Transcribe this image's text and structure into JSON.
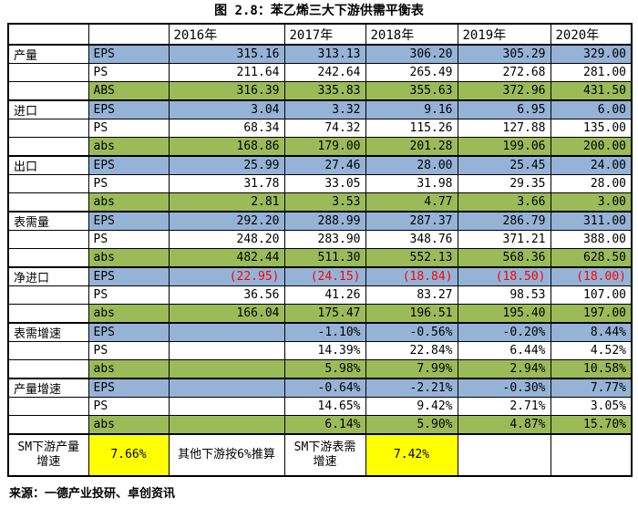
{
  "chart_data": {
    "type": "table",
    "title": "图 2.8：苯乙烯三大下游供需平衡表",
    "year_headers": [
      "2016年",
      "2017年",
      "2018年",
      "2019年",
      "2020年"
    ],
    "groups": [
      {
        "label": "产量",
        "rows": [
          {
            "sub": "EPS",
            "tone": "blue",
            "font": "black",
            "values": [
              "315.16",
              "313.13",
              "306.20",
              "305.29",
              "329.00"
            ]
          },
          {
            "sub": "PS",
            "tone": "white",
            "font": "black",
            "values": [
              "211.64",
              "242.64",
              "265.49",
              "272.68",
              "281.00"
            ]
          },
          {
            "sub": "ABS",
            "tone": "green",
            "font": "black",
            "values": [
              "316.39",
              "335.83",
              "355.63",
              "372.96",
              "431.50"
            ]
          }
        ]
      },
      {
        "label": "进口",
        "rows": [
          {
            "sub": "EPS",
            "tone": "blue",
            "font": "black",
            "values": [
              "3.04",
              "3.32",
              "9.16",
              "6.95",
              "6.00"
            ]
          },
          {
            "sub": "PS",
            "tone": "white",
            "font": "black",
            "values": [
              "68.34",
              "74.32",
              "115.26",
              "127.88",
              "135.00"
            ]
          },
          {
            "sub": "abs",
            "tone": "green",
            "font": "black",
            "values": [
              "168.86",
              "179.00",
              "201.28",
              "199.06",
              "200.00"
            ]
          }
        ]
      },
      {
        "label": "出口",
        "rows": [
          {
            "sub": "EPS",
            "tone": "blue",
            "font": "black",
            "values": [
              "25.99",
              "27.46",
              "28.00",
              "25.45",
              "24.00"
            ]
          },
          {
            "sub": "PS",
            "tone": "white",
            "font": "black",
            "values": [
              "31.78",
              "33.05",
              "31.98",
              "29.35",
              "28.00"
            ]
          },
          {
            "sub": "abs",
            "tone": "green",
            "font": "black",
            "values": [
              "2.81",
              "3.53",
              "4.77",
              "3.66",
              "3.00"
            ]
          }
        ]
      },
      {
        "label": "表需量",
        "rows": [
          {
            "sub": "EPS",
            "tone": "blue",
            "font": "black",
            "values": [
              "292.20",
              "288.99",
              "287.37",
              "286.79",
              "311.00"
            ]
          },
          {
            "sub": "PS",
            "tone": "white",
            "font": "black",
            "values": [
              "248.20",
              "283.90",
              "348.76",
              "371.21",
              "388.00"
            ]
          },
          {
            "sub": "abs",
            "tone": "green",
            "font": "black",
            "values": [
              "482.44",
              "511.30",
              "552.13",
              "568.36",
              "628.50"
            ]
          }
        ]
      },
      {
        "label": "净进口",
        "rows": [
          {
            "sub": "EPS",
            "tone": "blue",
            "font": "red",
            "values": [
              "(22.95)",
              "(24.15)",
              "(18.84)",
              "(18.50)",
              "(18.00)"
            ]
          },
          {
            "sub": "PS",
            "tone": "white",
            "font": "black",
            "values": [
              "36.56",
              "41.26",
              "83.27",
              "98.53",
              "107.00"
            ]
          },
          {
            "sub": "abs",
            "tone": "green",
            "font": "black",
            "values": [
              "166.04",
              "175.47",
              "196.51",
              "195.40",
              "197.00"
            ]
          }
        ]
      },
      {
        "label": "表需增速",
        "rows": [
          {
            "sub": "EPS",
            "tone": "blue",
            "font": "black",
            "values": [
              "",
              "-1.10%",
              "-0.56%",
              "-0.20%",
              "8.44%"
            ]
          },
          {
            "sub": "PS",
            "tone": "white",
            "font": "black",
            "values": [
              "",
              "14.39%",
              "22.84%",
              "6.44%",
              "4.52%"
            ]
          },
          {
            "sub": "abs",
            "tone": "green",
            "font": "black",
            "values": [
              "",
              "5.98%",
              "7.99%",
              "2.94%",
              "10.58%"
            ]
          }
        ]
      },
      {
        "label": "产量增速",
        "rows": [
          {
            "sub": "EPS",
            "tone": "blue",
            "font": "black",
            "values": [
              "",
              "-0.64%",
              "-2.21%",
              "-0.30%",
              "7.77%"
            ]
          },
          {
            "sub": "PS",
            "tone": "white",
            "font": "black",
            "values": [
              "",
              "14.65%",
              "9.42%",
              "2.71%",
              "3.05%"
            ]
          },
          {
            "sub": "abs",
            "tone": "green",
            "font": "black",
            "values": [
              "",
              "6.14%",
              "5.90%",
              "4.87%",
              "15.70%"
            ]
          }
        ]
      }
    ],
    "footer_row": {
      "cells": [
        {
          "text": "SM下游产量增速",
          "bg": "white"
        },
        {
          "text": "7.66%",
          "bg": "yellow"
        },
        {
          "text": "其他下游按6%推算",
          "bg": "white"
        },
        {
          "text": "SM下游表需增速",
          "bg": "white"
        },
        {
          "text": "7.42%",
          "bg": "yellow"
        },
        {
          "text": "",
          "bg": "white"
        },
        {
          "text": "",
          "bg": "white"
        }
      ]
    },
    "source": "来源：一德产业投研、卓创资讯",
    "colors": {
      "row_blue": "#95B3D7",
      "row_green": "#9BBB59",
      "highlight_yellow": "#FFFF00",
      "negative_red": "#FF0000",
      "border": "#000000"
    }
  }
}
